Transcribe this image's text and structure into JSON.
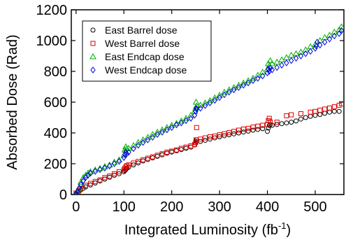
{
  "chart_data": {
    "type": "scatter",
    "title": "",
    "xlabel": "Integrated Luminosity (fb",
    "xlabel_sup": "-1",
    "xlabel_suffix": ")",
    "ylabel": "Absorbed Dose (Rad)",
    "xlim": [
      -10,
      560
    ],
    "ylim": [
      0,
      1200
    ],
    "xticks": [
      0,
      100,
      200,
      300,
      400,
      500
    ],
    "yticks": [
      0,
      200,
      400,
      600,
      800,
      1000,
      1200
    ],
    "grid": false,
    "legend_position": "top-left",
    "series": [
      {
        "name": "East Barrel dose",
        "marker": "circle",
        "color": "#000000",
        "x": [
          0,
          3,
          6,
          10,
          15,
          20,
          30,
          40,
          50,
          60,
          70,
          80,
          90,
          100,
          102,
          104,
          106,
          110,
          120,
          130,
          140,
          150,
          160,
          170,
          180,
          190,
          200,
          210,
          220,
          230,
          240,
          248,
          250,
          251,
          252,
          260,
          270,
          280,
          290,
          300,
          310,
          320,
          330,
          340,
          350,
          360,
          370,
          380,
          390,
          400,
          402,
          404,
          406,
          410,
          420,
          430,
          440,
          450,
          460,
          470,
          480,
          490,
          500,
          510,
          520,
          530,
          540,
          550
        ],
        "y": [
          5,
          12,
          20,
          30,
          40,
          50,
          62,
          75,
          88,
          100,
          112,
          125,
          135,
          148,
          155,
          162,
          170,
          178,
          192,
          205,
          218,
          228,
          238,
          248,
          258,
          268,
          276,
          284,
          292,
          300,
          308,
          322,
          335,
          345,
          355,
          345,
          352,
          360,
          368,
          375,
          382,
          388,
          394,
          400,
          406,
          412,
          418,
          423,
          428,
          410,
          432,
          448,
          455,
          450,
          455,
          460,
          465,
          470,
          478,
          490,
          500,
          508,
          514,
          520,
          528,
          535,
          540,
          540
        ]
      },
      {
        "name": "West Barrel dose",
        "marker": "square",
        "color": "#e00000",
        "x": [
          0,
          5,
          10,
          20,
          30,
          40,
          50,
          60,
          70,
          80,
          90,
          100,
          102,
          104,
          106,
          110,
          120,
          130,
          140,
          150,
          160,
          170,
          180,
          190,
          200,
          210,
          220,
          230,
          240,
          248,
          250,
          251,
          252,
          260,
          270,
          280,
          290,
          300,
          310,
          320,
          330,
          340,
          350,
          360,
          370,
          380,
          390,
          400,
          402,
          404,
          406,
          420,
          440,
          450,
          470,
          490,
          500,
          510,
          520,
          530,
          540,
          550,
          555
        ],
        "y": [
          10,
          22,
          40,
          60,
          72,
          85,
          95,
          110,
          120,
          135,
          148,
          160,
          170,
          180,
          188,
          192,
          205,
          215,
          226,
          236,
          245,
          255,
          265,
          275,
          282,
          290,
          300,
          308,
          316,
          325,
          338,
          355,
          435,
          360,
          368,
          375,
          380,
          388,
          395,
          402,
          410,
          418,
          425,
          430,
          438,
          444,
          450,
          455,
          480,
          495,
          472,
          470,
          512,
          518,
          525,
          535,
          540,
          548,
          555,
          562,
          570,
          580,
          590
        ]
      },
      {
        "name": "East Endcap dose",
        "marker": "triangle",
        "color": "#00b000",
        "x": [
          0,
          3,
          6,
          10,
          15,
          20,
          25,
          30,
          40,
          50,
          60,
          70,
          80,
          90,
          100,
          102,
          104,
          106,
          110,
          120,
          130,
          140,
          150,
          160,
          170,
          180,
          190,
          200,
          210,
          220,
          230,
          240,
          248,
          250,
          251,
          252,
          260,
          270,
          280,
          290,
          300,
          310,
          320,
          330,
          340,
          350,
          360,
          370,
          380,
          390,
          400,
          402,
          404,
          406,
          410,
          420,
          430,
          440,
          450,
          460,
          470,
          480,
          490,
          500,
          510,
          520,
          530,
          540,
          550,
          555
        ],
        "y": [
          5,
          18,
          40,
          80,
          110,
          125,
          140,
          148,
          160,
          170,
          182,
          192,
          210,
          225,
          255,
          290,
          310,
          298,
          300,
          318,
          338,
          355,
          372,
          390,
          405,
          420,
          435,
          450,
          462,
          478,
          495,
          515,
          540,
          560,
          600,
          575,
          580,
          595,
          610,
          628,
          645,
          665,
          680,
          695,
          710,
          725,
          740,
          755,
          775,
          795,
          815,
          850,
          835,
          870,
          850,
          860,
          875,
          890,
          905,
          915,
          925,
          940,
          960,
          975,
          1000,
          1020,
          1035,
          1055,
          1070,
          1090
        ]
      },
      {
        "name": "West Endcap dose",
        "marker": "diamond",
        "color": "#0000e0",
        "x": [
          0,
          3,
          6,
          10,
          15,
          20,
          25,
          30,
          40,
          50,
          60,
          70,
          80,
          90,
          100,
          102,
          104,
          106,
          110,
          120,
          130,
          140,
          150,
          160,
          170,
          180,
          190,
          200,
          210,
          220,
          230,
          240,
          248,
          250,
          251,
          252,
          260,
          270,
          280,
          290,
          300,
          310,
          320,
          330,
          340,
          350,
          360,
          370,
          380,
          390,
          400,
          402,
          404,
          406,
          410,
          420,
          430,
          440,
          450,
          460,
          470,
          480,
          490,
          500,
          502,
          504,
          510,
          520,
          530,
          540,
          550,
          555
        ],
        "y": [
          5,
          20,
          40,
          65,
          90,
          110,
          125,
          138,
          150,
          162,
          172,
          185,
          200,
          215,
          240,
          260,
          275,
          265,
          275,
          298,
          320,
          338,
          355,
          372,
          390,
          405,
          420,
          435,
          452,
          465,
          480,
          495,
          515,
          540,
          560,
          555,
          560,
          578,
          595,
          612,
          630,
          648,
          665,
          680,
          695,
          710,
          725,
          740,
          755,
          770,
          790,
          815,
          800,
          820,
          810,
          825,
          840,
          855,
          870,
          885,
          900,
          915,
          930,
          950,
          965,
          990,
          970,
          990,
          1010,
          1030,
          1045,
          1065
        ]
      }
    ]
  }
}
